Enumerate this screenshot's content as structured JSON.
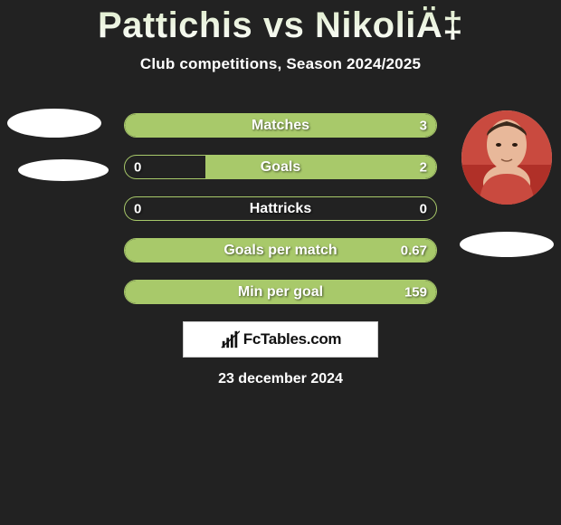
{
  "title": "Pattichis vs NikoliÄ‡",
  "subtitle": "Club competitions, Season 2024/2025",
  "colors": {
    "bg": "#222222",
    "accent": "#a8c96a",
    "text": "#ffffff",
    "logo_box_bg": "#ffffff"
  },
  "stats": {
    "rows": [
      {
        "label": "Matches",
        "left": "",
        "right": "3",
        "fill": "full",
        "left_pct": 0,
        "right_pct": 100
      },
      {
        "label": "Goals",
        "left": "0",
        "right": "2",
        "fill": "right",
        "left_pct": 0,
        "right_pct": 74
      },
      {
        "label": "Hattricks",
        "left": "0",
        "right": "0",
        "fill": "none",
        "left_pct": 0,
        "right_pct": 0
      },
      {
        "label": "Goals per match",
        "left": "",
        "right": "0.67",
        "fill": "full",
        "left_pct": 0,
        "right_pct": 100
      },
      {
        "label": "Min per goal",
        "left": "",
        "right": "159",
        "fill": "full",
        "left_pct": 0,
        "right_pct": 100
      }
    ]
  },
  "logo_text": "FcTables.com",
  "date": "23 december 2024"
}
